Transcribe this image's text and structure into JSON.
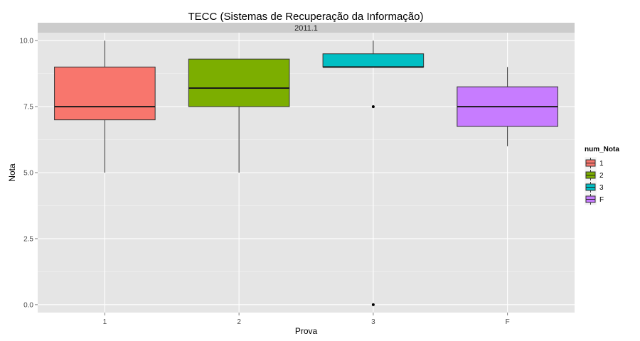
{
  "chart_data": {
    "type": "boxplot",
    "title": "TECC (Sistemas de Recuperação da Informação)",
    "facet_label": "2011.1",
    "xlabel": "Prova",
    "ylabel": "Nota",
    "ylim": [
      -0.3,
      10.3
    ],
    "yticks": [
      0.0,
      2.5,
      5.0,
      7.5,
      10.0
    ],
    "ytick_labels": [
      "0.0",
      "2.5",
      "5.0",
      "7.5",
      "10.0"
    ],
    "categories": [
      "1",
      "2",
      "3",
      "F"
    ],
    "boxes": [
      {
        "category": "1",
        "min": 5.0,
        "q1": 7.0,
        "median": 7.5,
        "q3": 9.0,
        "max": 10.0,
        "outliers": [],
        "color": "#F8766D"
      },
      {
        "category": "2",
        "min": 5.0,
        "q1": 7.5,
        "median": 8.2,
        "q3": 9.3,
        "max": 9.3,
        "outliers": [],
        "color": "#7CAE00"
      },
      {
        "category": "3",
        "min": 9.0,
        "q1": 9.0,
        "median": 9.0,
        "q3": 9.5,
        "max": 10.0,
        "outliers": [
          7.5,
          0.0
        ],
        "color": "#00BFC4"
      },
      {
        "category": "F",
        "min": 6.0,
        "q1": 6.75,
        "median": 7.5,
        "q3": 8.25,
        "max": 9.0,
        "outliers": [],
        "color": "#C77CFF"
      }
    ],
    "legend": {
      "title": "num_Nota",
      "position": "right",
      "items": [
        {
          "label": "1",
          "color": "#F8766D"
        },
        {
          "label": "2",
          "color": "#7CAE00"
        },
        {
          "label": "3",
          "color": "#00BFC4"
        },
        {
          "label": "F",
          "color": "#C77CFF"
        }
      ]
    },
    "panel_background": "#E5E5E5",
    "strip_background": "#CCCCCC",
    "grid": true
  }
}
